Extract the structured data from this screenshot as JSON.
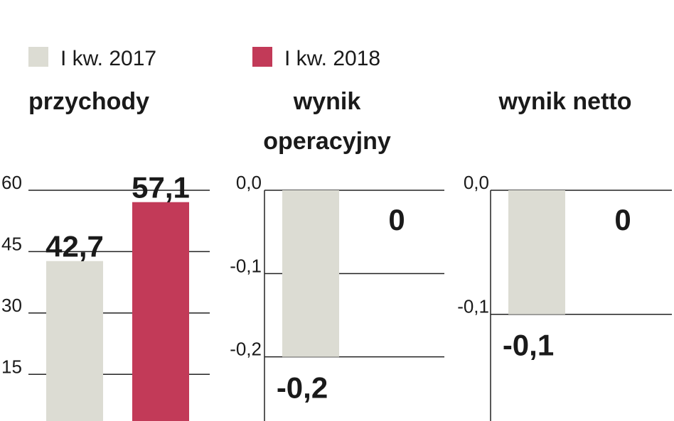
{
  "legend": {
    "items": [
      {
        "name": "I kw. 2017",
        "color": "#dcdcd3"
      },
      {
        "name": "I kw. 2018",
        "color": "#c23a58"
      }
    ]
  },
  "chart_data": [
    {
      "type": "bar",
      "title": "przychody",
      "values": [
        42.7,
        57.1
      ],
      "value_labels": [
        "42,7",
        "57,1"
      ],
      "ylim": [
        3.6,
        60
      ],
      "yticks": [
        60,
        45,
        30,
        15
      ],
      "grid": true
    },
    {
      "type": "bar",
      "title": "wynik operacyjny",
      "values": [
        -0.2,
        0
      ],
      "value_labels": [
        "-0,2",
        "0"
      ],
      "ylim": [
        -0.277,
        0
      ],
      "yticks": [
        {
          "value": 0,
          "label": "0,0"
        },
        {
          "value": -0.1,
          "label": "-0,1"
        },
        {
          "value": -0.2,
          "label": "-0,2"
        }
      ],
      "grid": true
    },
    {
      "type": "bar",
      "title": "wynik netto",
      "values": [
        -0.1,
        0
      ],
      "value_labels": [
        "-0,1",
        "0"
      ],
      "ylim": [
        -0.186,
        0
      ],
      "yticks": [
        {
          "value": 0,
          "label": "0,0"
        },
        {
          "value": -0.1,
          "label": "-0,1"
        }
      ],
      "grid": true
    }
  ]
}
